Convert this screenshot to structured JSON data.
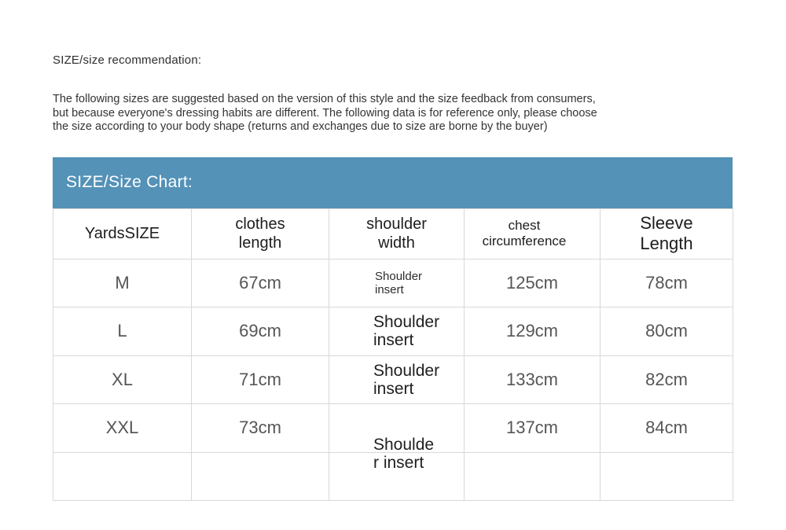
{
  "page": {
    "title": "SIZE/size recommendation:",
    "description_lines": [
      "The following sizes are suggested based on the version of this style and the size feedback from consumers,",
      "but because everyone's dressing habits are different. The following data is for reference only, please choose",
      "the size according to your body shape (returns and exchanges due to size are borne by the buyer)"
    ]
  },
  "size_chart": {
    "banner_label": "SIZE/Size Chart:",
    "banner_color": "#5492b8",
    "border_color": "#d8d8d8",
    "columns": [
      "YardsSIZE",
      "clothes length",
      "shoulder width",
      "chest circumference",
      "Sleeve Length"
    ],
    "rows": [
      {
        "size": "M",
        "clothes_length": "67cm",
        "shoulder_width": "Shoulder insert",
        "chest_circumference": "125cm",
        "sleeve_length": "78cm"
      },
      {
        "size": "L",
        "clothes_length": "69cm",
        "shoulder_width": "Shoulder insert",
        "chest_circumference": "129cm",
        "sleeve_length": "80cm"
      },
      {
        "size": "XL",
        "clothes_length": "71cm",
        "shoulder_width": "Shoulder insert",
        "chest_circumference": "133cm",
        "sleeve_length": "82cm"
      },
      {
        "size": "XXL",
        "clothes_length": "73cm",
        "shoulder_width": "Shoulde r insert",
        "chest_circumference": "137cm",
        "sleeve_length": "84cm"
      },
      {
        "size": "",
        "clothes_length": "",
        "shoulder_width": "",
        "chest_circumference": "",
        "sleeve_length": ""
      }
    ]
  }
}
